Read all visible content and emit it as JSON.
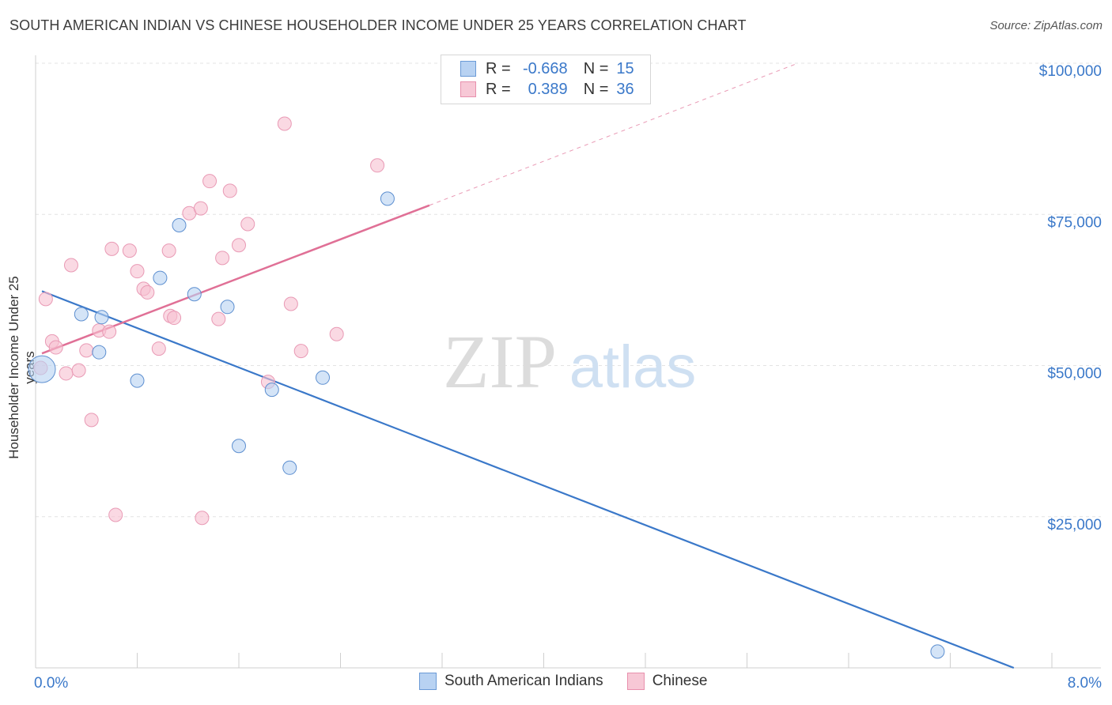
{
  "title": "SOUTH AMERICAN INDIAN VS CHINESE HOUSEHOLDER INCOME UNDER 25 YEARS CORRELATION CHART",
  "source": "Source: ZipAtlas.com",
  "watermark_zip": "ZIP",
  "watermark_atlas": "atlas",
  "colors": {
    "blue": "#3a78c9",
    "blue_fill": "#b8d2f2",
    "pink": "#e07096",
    "pink_fill": "#f7bfd0",
    "axis_text": "#3a78c9"
  },
  "legend": {
    "rows": [
      {
        "r_label": "R =",
        "r_value": "-0.668",
        "n_label": "N =",
        "n_value": "15"
      },
      {
        "r_label": "R =",
        "r_value": "0.389",
        "n_label": "N =",
        "n_value": "36"
      }
    ]
  },
  "bottom_legend": {
    "series1": "South American Indians",
    "series2": "Chinese"
  },
  "chart_data": {
    "type": "scatter",
    "title": "SOUTH AMERICAN INDIAN VS CHINESE HOUSEHOLDER INCOME UNDER 25 YEARS CORRELATION CHART",
    "xlabel": "",
    "ylabel": "Householder Income Under 25 years",
    "xlim": [
      0,
      8
    ],
    "ylim": [
      0,
      105000
    ],
    "x_tick_labels": [
      "0.0%",
      "8.0%"
    ],
    "y_ticks": [
      25000,
      50000,
      75000,
      100000
    ],
    "y_tick_labels": [
      "$25,000",
      "$50,000",
      "$75,000",
      "$100,000"
    ],
    "grid": true,
    "legend_position": "top-center",
    "series": [
      {
        "name": "South American Indians",
        "r": -0.668,
        "n": 15,
        "points": [
          {
            "x": 0.05,
            "y": 49400,
            "big": true
          },
          {
            "x": 0.36,
            "y": 58500
          },
          {
            "x": 0.52,
            "y": 58000
          },
          {
            "x": 0.5,
            "y": 52200
          },
          {
            "x": 0.8,
            "y": 47500
          },
          {
            "x": 0.98,
            "y": 64500
          },
          {
            "x": 1.13,
            "y": 73200
          },
          {
            "x": 1.25,
            "y": 61800
          },
          {
            "x": 1.51,
            "y": 59700
          },
          {
            "x": 1.6,
            "y": 36700
          },
          {
            "x": 1.86,
            "y": 46000
          },
          {
            "x": 2.0,
            "y": 33100
          },
          {
            "x": 2.26,
            "y": 48000
          },
          {
            "x": 2.77,
            "y": 77600
          },
          {
            "x": 7.1,
            "y": 2700
          }
        ],
        "trend": {
          "x1": 0.05,
          "y1": 62300,
          "x2": 7.7,
          "y2": 0
        }
      },
      {
        "name": "Chinese",
        "r": 0.389,
        "n": 36,
        "points": [
          {
            "x": 0.04,
            "y": 49600
          },
          {
            "x": 0.08,
            "y": 61000
          },
          {
            "x": 0.13,
            "y": 54000
          },
          {
            "x": 0.16,
            "y": 53000
          },
          {
            "x": 0.24,
            "y": 48700
          },
          {
            "x": 0.28,
            "y": 66600
          },
          {
            "x": 0.34,
            "y": 49200
          },
          {
            "x": 0.4,
            "y": 52500
          },
          {
            "x": 0.44,
            "y": 41000
          },
          {
            "x": 0.5,
            "y": 55800
          },
          {
            "x": 0.58,
            "y": 55600
          },
          {
            "x": 0.6,
            "y": 69300
          },
          {
            "x": 0.63,
            "y": 25300
          },
          {
            "x": 0.74,
            "y": 69000
          },
          {
            "x": 0.8,
            "y": 65600
          },
          {
            "x": 0.85,
            "y": 62700
          },
          {
            "x": 0.88,
            "y": 62100
          },
          {
            "x": 0.97,
            "y": 52800
          },
          {
            "x": 1.05,
            "y": 69000
          },
          {
            "x": 1.06,
            "y": 58200
          },
          {
            "x": 1.09,
            "y": 57900
          },
          {
            "x": 1.21,
            "y": 75200
          },
          {
            "x": 1.3,
            "y": 76000
          },
          {
            "x": 1.31,
            "y": 24800
          },
          {
            "x": 1.37,
            "y": 80500
          },
          {
            "x": 1.44,
            "y": 57700
          },
          {
            "x": 1.47,
            "y": 67800
          },
          {
            "x": 1.53,
            "y": 78900
          },
          {
            "x": 1.6,
            "y": 69900
          },
          {
            "x": 1.67,
            "y": 73400
          },
          {
            "x": 1.83,
            "y": 47300
          },
          {
            "x": 1.96,
            "y": 90000
          },
          {
            "x": 2.01,
            "y": 60200
          },
          {
            "x": 2.09,
            "y": 52400
          },
          {
            "x": 2.37,
            "y": 55200
          },
          {
            "x": 2.69,
            "y": 83100
          }
        ],
        "trend": {
          "x1": 0.05,
          "y1": 52000,
          "x2": 3.1,
          "y2": 76500
        },
        "trend_dashed": {
          "x1": 3.1,
          "y1": 76500,
          "x2": 6.0,
          "y2": 100000
        }
      }
    ]
  }
}
